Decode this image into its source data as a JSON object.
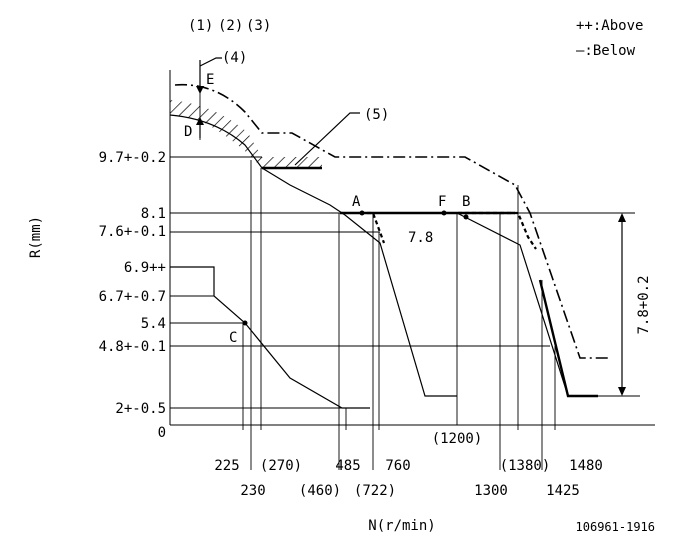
{
  "chart_data": {
    "type": "line",
    "title": "",
    "xlabel": "N(r/min)",
    "ylabel": "R(mm)",
    "figure_id": "106961-1916",
    "legend": [
      "++:Above",
      "—:Below"
    ],
    "legend_placement": "top-right",
    "top_labels": [
      "(1)",
      "(2)",
      "(3)",
      "(4)",
      "(5)"
    ],
    "letters": [
      "E",
      "D",
      "A",
      "F",
      "B",
      "C"
    ],
    "x_ticks_row1": [
      "225",
      "(270)",
      "485",
      "760",
      "(1200)",
      "(1380)",
      "1480"
    ],
    "x_ticks_row2": [
      "230",
      "(460)",
      "(722)",
      "1300",
      "1425"
    ],
    "y_ticks": [
      "9.7+-0.2",
      "8.1",
      "7.6+-0.1",
      "6.9++",
      "6.7+-0.7",
      "5.4",
      "4.8+-0.1",
      "2+-0.5",
      "0"
    ],
    "annotations": [
      "7.8",
      "7.8+0.2"
    ],
    "series": [
      {
        "name": "",
        "style": "solid-thick",
        "x": [
          300,
          350,
          780,
          790,
          1000,
          1300,
          1380,
          1440,
          1460,
          1530
        ],
        "y": [
          10.4,
          9.7,
          9.7,
          8.1,
          8.1,
          8.1,
          8.1,
          7.4,
          1.5,
          1.5
        ]
      },
      {
        "name": "",
        "style": "solid-thin",
        "x": [
          230,
          245,
          280,
          350,
          420,
          485,
          505,
          560,
          740,
          770,
          810,
          900,
          1200,
          1300,
          1380,
          1425
        ],
        "y": [
          9.5,
          9.4,
          9.1,
          8.6,
          8.0,
          7.8,
          7.5,
          6.0,
          1.5,
          1.5,
          8.1,
          7.9,
          7.8,
          7.7,
          7.5,
          1.5
        ]
      },
      {
        "name": "",
        "style": "dashdot",
        "x": [
          300,
          340,
          380,
          540,
          980,
          1300,
          1360,
          1430
        ],
        "y": [
          11.5,
          10.7,
          10.4,
          9.7,
          9.7,
          8.8,
          8.1,
          2.6
        ]
      },
      {
        "name": "",
        "style": "dotted",
        "x": [
          780,
          790,
          810,
          1000,
          1300,
          1380,
          1420
        ],
        "y": [
          8.1,
          8.1,
          7.6,
          8.1,
          8.1,
          7.4,
          7.4
        ]
      },
      {
        "name": "",
        "style": "solid-lower",
        "x": [
          120,
          200,
          230,
          265,
          330,
          400,
          420,
          520
        ],
        "y": [
          6.9,
          6.9,
          5.9,
          5.4,
          4.2,
          2.0,
          2.0,
          2.0
        ]
      }
    ]
  }
}
